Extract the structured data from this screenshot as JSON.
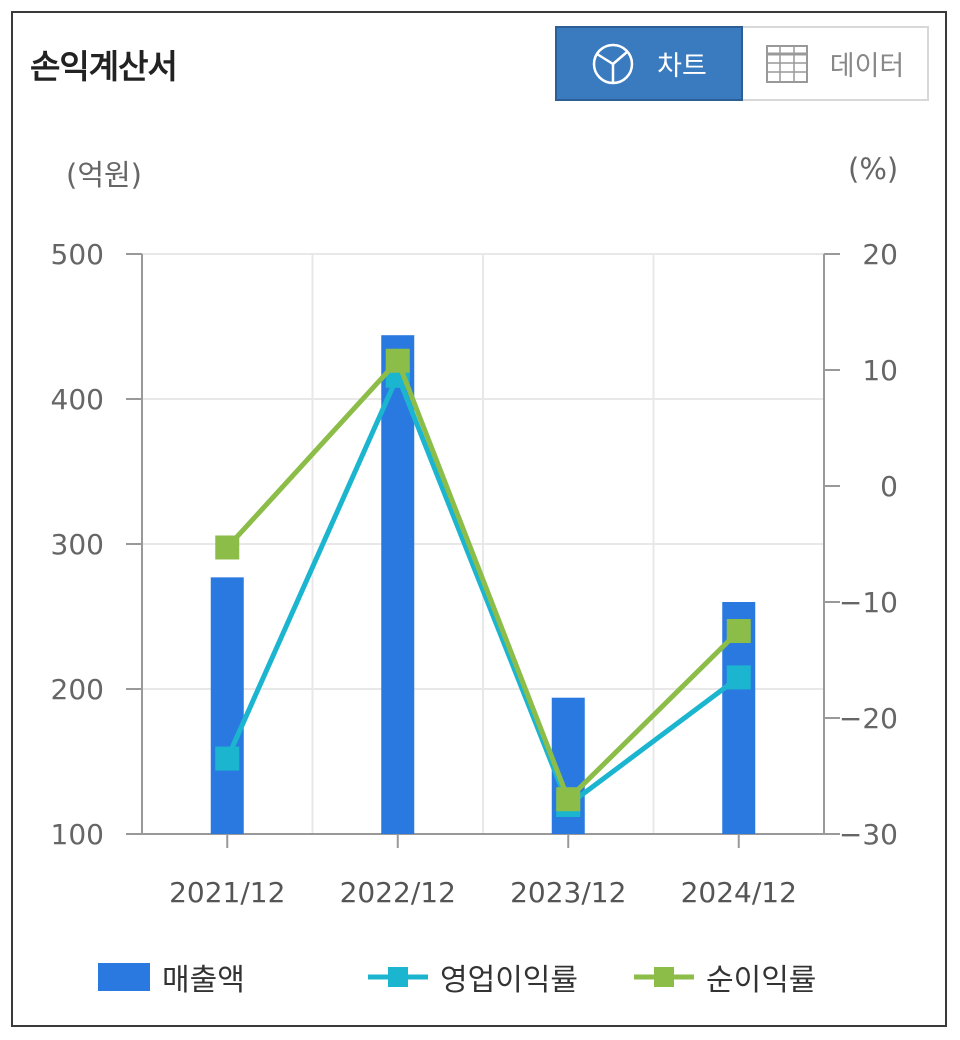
{
  "header": {
    "title": "손익계산서",
    "chart_tab_label": "차트",
    "data_tab_label": "데이터"
  },
  "axes": {
    "left_unit": "(억원)",
    "right_unit": "(%)"
  },
  "colors": {
    "revenue": "#2979e0",
    "operating_margin": "#1cb5cf",
    "net_margin": "#8cbd48",
    "tab_active": "#3a7bc0"
  },
  "chart_data": {
    "type": "bar",
    "categories": [
      "2021/12",
      "2022/12",
      "2023/12",
      "2024/12"
    ],
    "left_axis": {
      "ylim": [
        100,
        500
      ],
      "ticks": [
        100,
        200,
        300,
        400,
        500
      ],
      "unit": "(억원)"
    },
    "right_axis": {
      "ylim": [
        -30,
        20
      ],
      "ticks": [
        -30,
        -20,
        -10,
        0,
        10,
        20
      ],
      "unit": "(%)"
    },
    "series": [
      {
        "name": "매출액",
        "type": "bar",
        "axis": "left",
        "values": [
          277,
          444,
          194,
          260
        ]
      },
      {
        "name": "영업이익률",
        "type": "line",
        "axis": "right",
        "values": [
          -23.5,
          9.5,
          -27.5,
          -16.5
        ]
      },
      {
        "name": "순이익률",
        "type": "line",
        "axis": "right",
        "values": [
          -5.3,
          10.8,
          -27.0,
          -12.5
        ]
      }
    ],
    "grid": true,
    "legend": "bottom"
  }
}
